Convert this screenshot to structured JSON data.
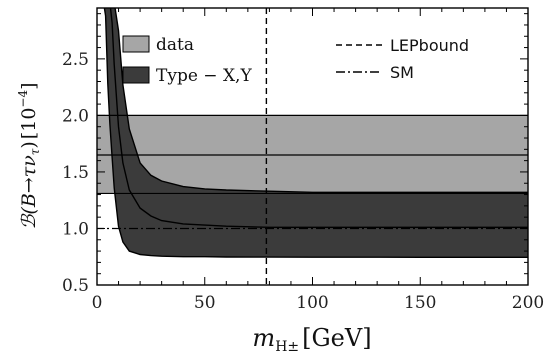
{
  "chart_data": {
    "type": "area",
    "xlabel": {
      "main": "m",
      "sub": "H±",
      "unit": "[GeV]"
    },
    "ylabel": {
      "text": "ℬ(B→τν",
      "sub": "τ",
      "close": ")",
      "unit": "[10",
      "unit_exp": "−4",
      "unit_close": "]"
    },
    "xlim": [
      0,
      200
    ],
    "ylim": [
      0.5,
      2.95
    ],
    "x_ticks": [
      0,
      50,
      100,
      150,
      200
    ],
    "x_tick_labels": [
      "0",
      "50",
      "100",
      "150",
      "200"
    ],
    "y_ticks": [
      0.5,
      1.0,
      1.5,
      2.0,
      2.5
    ],
    "y_tick_labels": [
      "0.5",
      "1.0",
      "1.5",
      "2.0",
      "2.5"
    ],
    "grid": false,
    "data_band": {
      "name": "data",
      "lower": 1.31,
      "central": 1.65,
      "upper": 2.0,
      "color": "#a6a6a6"
    },
    "type_xy_band": {
      "name": "Type − X,Y",
      "color": "#3b3b3b",
      "x": [
        1.0,
        2.0,
        3.0,
        4.0,
        5.0,
        6.0,
        7.0,
        8.0,
        10.0,
        12.0,
        15.0,
        20.0,
        25.0,
        30.0,
        40.0,
        50.0,
        60.0,
        80.0,
        100.0,
        125.0,
        150.0,
        175.0,
        200.0
      ],
      "lower": [
        3.0,
        3.0,
        3.0,
        2.88,
        2.28,
        1.92,
        1.63,
        1.36,
        1.02,
        0.88,
        0.8,
        0.77,
        0.76,
        0.755,
        0.75,
        0.75,
        0.748,
        0.747,
        0.746,
        0.746,
        0.745,
        0.745,
        0.745
      ],
      "central": [
        3.0,
        3.0,
        3.0,
        3.0,
        3.0,
        3.0,
        2.82,
        2.45,
        1.9,
        1.58,
        1.34,
        1.18,
        1.11,
        1.07,
        1.04,
        1.03,
        1.02,
        1.01,
        1.01,
        1.01,
        1.01,
        1.01,
        1.01
      ],
      "upper": [
        3.0,
        3.0,
        3.0,
        3.0,
        3.0,
        3.0,
        3.0,
        3.0,
        2.75,
        2.27,
        1.88,
        1.58,
        1.47,
        1.42,
        1.37,
        1.35,
        1.34,
        1.33,
        1.32,
        1.32,
        1.32,
        1.32,
        1.32
      ]
    },
    "lep_bound": {
      "name": "LEPbound",
      "x": 78.6,
      "style": "dashed"
    },
    "sm": {
      "name": "SM",
      "y": 1.0,
      "style": "dashdot"
    },
    "legend": {
      "left_entries": [
        "data",
        "Type − X,Y"
      ],
      "right_entries": [
        "LEPbound",
        "SM"
      ]
    }
  }
}
